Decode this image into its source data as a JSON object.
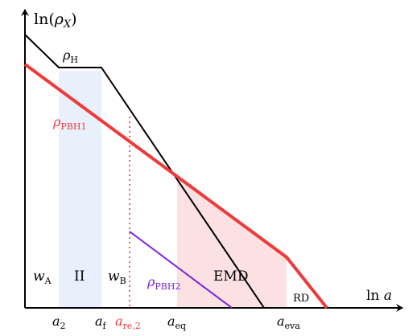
{
  "axes": {
    "y_label_prefix": "ln(",
    "y_label_var": "ρ",
    "y_label_sub": "X",
    "y_label_suffix": ")",
    "x_label_prefix": "ln ",
    "x_label_var": "a"
  },
  "curves": {
    "rho_h": {
      "var": "ρ",
      "sub": "H",
      "color": "#000000"
    },
    "rho_pbh1": {
      "var": "ρ",
      "sub": "PBH1",
      "color": "#f03a3a"
    },
    "rho_pbh2": {
      "var": "ρ",
      "sub": "PBH2",
      "color": "#7a22d6"
    }
  },
  "regions": {
    "w_a": {
      "var": "w",
      "sub": "A"
    },
    "ii": {
      "label": "II",
      "color": "#e8f0fc"
    },
    "w_b": {
      "var": "w",
      "sub": "B"
    },
    "emd": {
      "label": "EMD",
      "color": "#fbe1e1"
    },
    "rd": {
      "label": "RD"
    }
  },
  "ticks": {
    "a2": {
      "var": "a",
      "sub": "2"
    },
    "af": {
      "var": "a",
      "sub": "f"
    },
    "are2": {
      "var": "a",
      "sub": "re,2",
      "color": "#f03a3a"
    },
    "aeq": {
      "var": "a",
      "sub": "eq"
    },
    "aeva": {
      "var": "a",
      "sub": "eva"
    }
  }
}
